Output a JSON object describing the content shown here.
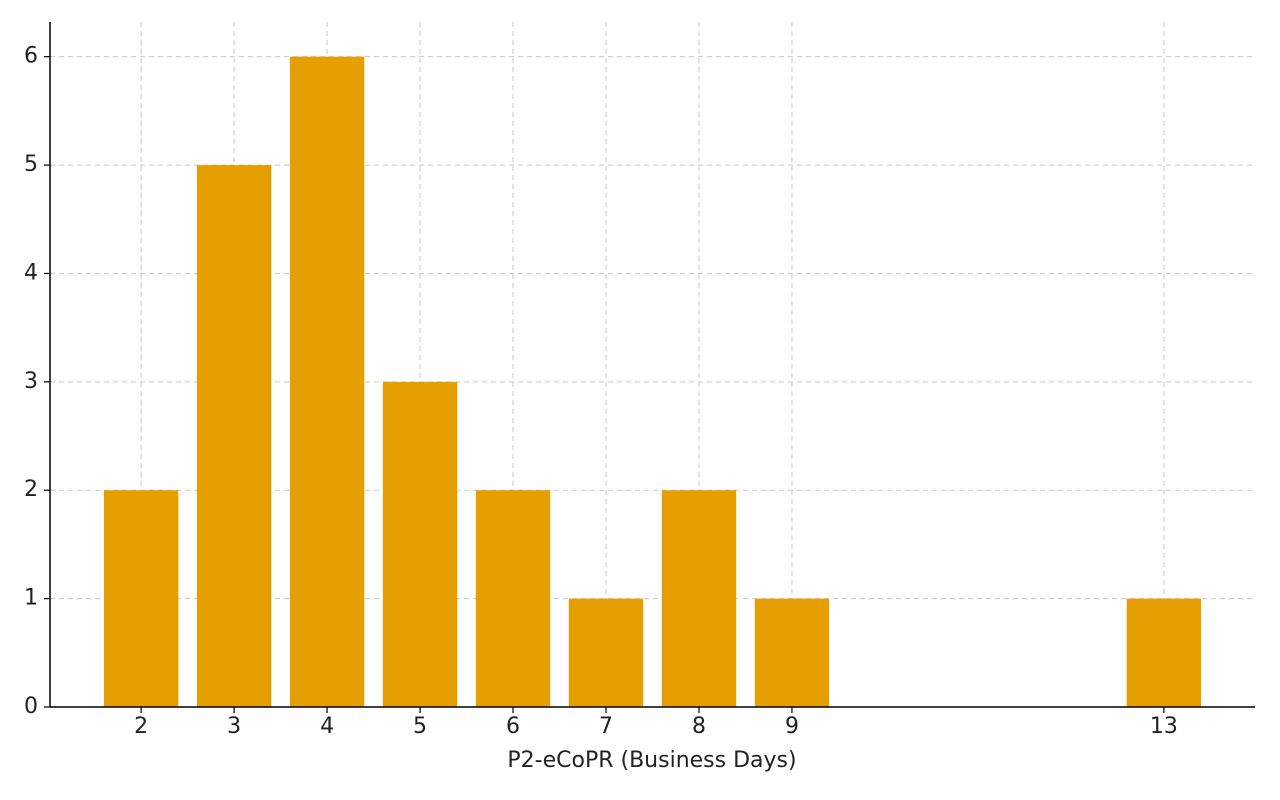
{
  "chart_data": {
    "type": "bar",
    "x_label": "P2-eCoPR (Business Days)",
    "x": [
      2,
      3,
      4,
      5,
      6,
      7,
      8,
      9,
      13
    ],
    "values": [
      2,
      5,
      6,
      3,
      2,
      1,
      2,
      1,
      1
    ],
    "color": "#e69f00",
    "xlim": [
      1.02,
      13.98
    ],
    "xticks": [
      2,
      3,
      4,
      5,
      6,
      7,
      8,
      9,
      13
    ],
    "ylim": [
      0,
      6.32
    ],
    "yticks": [
      0,
      1,
      2,
      3,
      4,
      5,
      6
    ],
    "grid": true
  }
}
